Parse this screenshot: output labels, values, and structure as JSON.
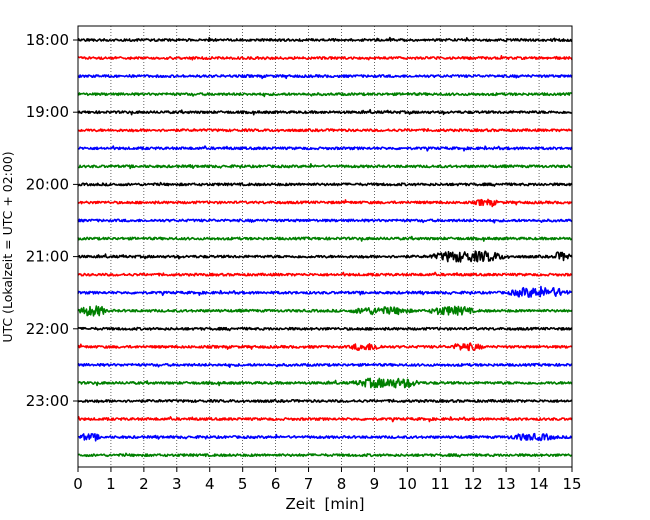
{
  "chart_data": {
    "type": "line",
    "subtype": "helicorder",
    "xlabel": "Zeit  [min]",
    "ylabel": "UTC (Lokalzeit = UTC + 02:00)",
    "xlim": [
      0,
      15
    ],
    "x_ticks": [
      0,
      1,
      2,
      3,
      4,
      5,
      6,
      7,
      8,
      9,
      10,
      11,
      12,
      13,
      14,
      15
    ],
    "x_tick_labels": [
      "0",
      "1",
      "2",
      "3",
      "4",
      "5",
      "6",
      "7",
      "8",
      "9",
      "10",
      "11",
      "12",
      "13",
      "14",
      "15"
    ],
    "y_tick_labels": [
      "18:00",
      "19:00",
      "20:00",
      "21:00",
      "22:00",
      "23:00"
    ],
    "y_tick_rows": [
      0,
      4,
      8,
      12,
      16,
      20
    ],
    "rows_per_hour": 4,
    "row_count": 24,
    "grid": "vertical dotted",
    "colors": [
      "#000000",
      "#ff0000",
      "#0000ff",
      "#008000"
    ],
    "traces": [
      {
        "start": "18:00",
        "color": "#000000"
      },
      {
        "start": "18:15",
        "color": "#ff0000"
      },
      {
        "start": "18:30",
        "color": "#0000ff"
      },
      {
        "start": "18:45",
        "color": "#008000"
      },
      {
        "start": "19:00",
        "color": "#000000"
      },
      {
        "start": "19:15",
        "color": "#ff0000"
      },
      {
        "start": "19:30",
        "color": "#0000ff"
      },
      {
        "start": "19:45",
        "color": "#008000"
      },
      {
        "start": "20:00",
        "color": "#000000"
      },
      {
        "start": "20:15",
        "color": "#ff0000"
      },
      {
        "start": "20:30",
        "color": "#0000ff"
      },
      {
        "start": "20:45",
        "color": "#008000"
      },
      {
        "start": "21:00",
        "color": "#000000"
      },
      {
        "start": "21:15",
        "color": "#ff0000"
      },
      {
        "start": "21:30",
        "color": "#0000ff"
      },
      {
        "start": "21:45",
        "color": "#008000"
      },
      {
        "start": "22:00",
        "color": "#000000"
      },
      {
        "start": "22:15",
        "color": "#ff0000"
      },
      {
        "start": "22:30",
        "color": "#0000ff"
      },
      {
        "start": "22:45",
        "color": "#008000"
      },
      {
        "start": "23:00",
        "color": "#000000"
      },
      {
        "start": "23:15",
        "color": "#ff0000"
      },
      {
        "start": "23:30",
        "color": "#0000ff"
      },
      {
        "start": "23:45",
        "color": "#008000"
      }
    ]
  }
}
